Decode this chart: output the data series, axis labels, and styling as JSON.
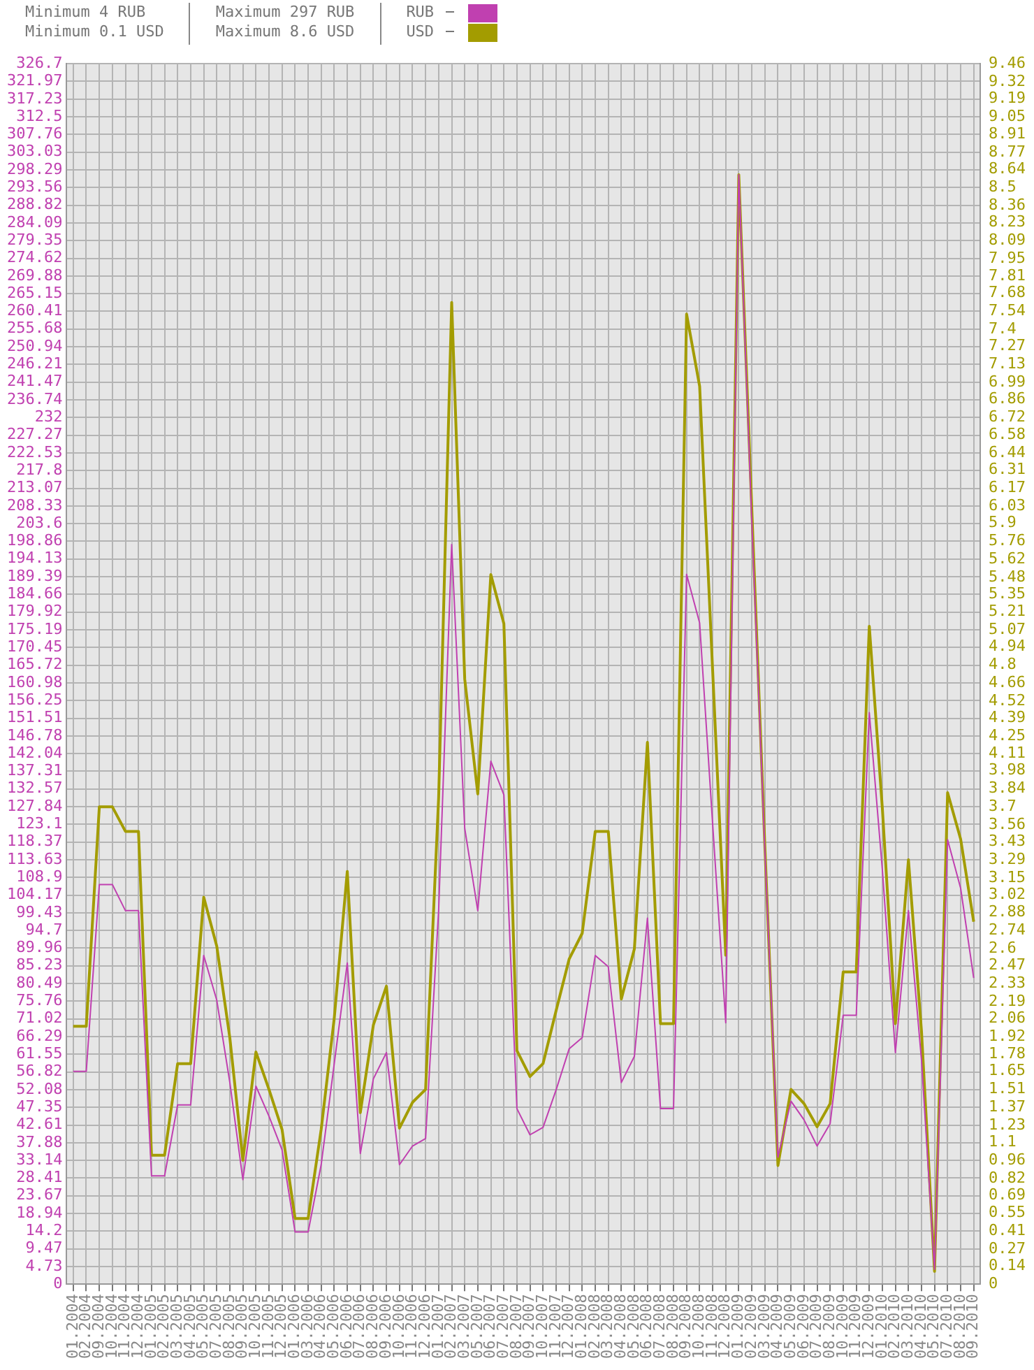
{
  "chart_data": {
    "type": "line",
    "categories": [
      "01.2004",
      "02.2004",
      "09.2004",
      "10.2004",
      "11.2004",
      "12.2004",
      "01.2005",
      "02.2005",
      "03.2005",
      "04.2005",
      "05.2005",
      "07.2005",
      "08.2005",
      "09.2005",
      "10.2005",
      "11.2005",
      "12.2005",
      "01.2006",
      "03.2006",
      "04.2006",
      "05.2006",
      "06.2006",
      "07.2006",
      "08.2006",
      "09.2006",
      "10.2006",
      "11.2006",
      "12.2006",
      "01.2007",
      "02.2007",
      "03.2007",
      "05.2007",
      "06.2007",
      "07.2007",
      "08.2007",
      "09.2007",
      "10.2007",
      "11.2007",
      "12.2007",
      "01.2008",
      "02.2008",
      "03.2008",
      "04.2008",
      "05.2008",
      "06.2008",
      "07.2008",
      "08.2008",
      "09.2008",
      "10.2008",
      "11.2008",
      "12.2008",
      "01.2009",
      "02.2009",
      "03.2009",
      "04.2009",
      "05.2009",
      "06.2009",
      "07.2009",
      "08.2009",
      "10.2009",
      "11.2009",
      "12.2009",
      "01.2010",
      "02.2010",
      "03.2010",
      "04.2010",
      "05.2010",
      "07.2010",
      "08.2010",
      "09.2010"
    ],
    "series": [
      {
        "name": "RUB",
        "color": "#c040b0",
        "values": [
          57,
          57,
          107,
          107,
          100,
          100,
          29,
          29,
          48,
          48,
          88,
          76,
          54,
          28,
          53,
          45,
          36,
          14,
          14,
          32,
          59,
          86,
          35,
          55,
          62,
          32,
          37,
          39,
          100,
          198,
          122,
          100,
          140,
          131,
          47,
          40,
          42,
          52,
          63,
          66,
          88,
          85,
          54,
          61,
          98,
          47,
          47,
          190,
          177,
          123,
          70,
          297,
          204,
          116,
          34,
          49,
          44,
          37,
          43,
          72,
          72,
          153,
          111,
          62,
          100,
          60,
          4,
          119,
          106,
          82
        ]
      },
      {
        "name": "USD",
        "color": "#a39c00",
        "axis": "y2",
        "values": [
          2.0,
          2.0,
          3.7,
          3.7,
          3.51,
          3.51,
          1.0,
          1.0,
          1.71,
          1.71,
          3.0,
          2.62,
          1.91,
          0.96,
          1.8,
          1.51,
          1.2,
          0.51,
          0.51,
          1.2,
          2.06,
          3.2,
          1.33,
          2.01,
          2.31,
          1.21,
          1.41,
          1.51,
          3.77,
          7.61,
          4.69,
          3.8,
          5.5,
          5.12,
          1.81,
          1.61,
          1.71,
          2.12,
          2.52,
          2.72,
          3.51,
          3.51,
          2.21,
          2.6,
          4.2,
          2.02,
          2.02,
          7.52,
          6.96,
          4.75,
          2.55,
          8.6,
          6.0,
          3.39,
          0.92,
          1.51,
          1.4,
          1.22,
          1.4,
          2.42,
          2.42,
          5.1,
          3.69,
          2.02,
          3.29,
          1.96,
          0.1,
          3.81,
          3.45,
          2.81
        ]
      }
    ],
    "ylim": [
      0,
      326.7
    ],
    "yticks": [
      0,
      4.73,
      9.47,
      14.2,
      18.94,
      23.67,
      28.41,
      33.14,
      37.88,
      42.61,
      47.35,
      52.08,
      56.82,
      61.55,
      66.29,
      71.02,
      75.76,
      80.49,
      85.23,
      89.96,
      94.7,
      99.43,
      104.17,
      108.9,
      113.63,
      118.37,
      123.1,
      127.84,
      132.57,
      137.31,
      142.04,
      146.78,
      151.51,
      156.25,
      160.98,
      165.72,
      170.45,
      175.19,
      179.92,
      184.66,
      189.39,
      194.13,
      198.86,
      203.6,
      208.33,
      213.07,
      217.8,
      222.53,
      227.27,
      232,
      236.74,
      241.47,
      246.21,
      250.94,
      255.68,
      260.41,
      265.15,
      269.88,
      274.62,
      279.35,
      284.09,
      288.82,
      293.56,
      298.29,
      303.03,
      307.76,
      312.5,
      317.23,
      321.97,
      326.7
    ],
    "y2lim": [
      0,
      9.46
    ],
    "y2ticks": [
      0,
      0.14,
      0.27,
      0.41,
      0.55,
      0.69,
      0.82,
      0.96,
      1.1,
      1.23,
      1.37,
      1.51,
      1.65,
      1.78,
      1.92,
      2.06,
      2.19,
      2.33,
      2.47,
      2.6,
      2.74,
      2.88,
      3.02,
      3.15,
      3.29,
      3.43,
      3.56,
      3.7,
      3.84,
      3.98,
      4.11,
      4.25,
      4.39,
      4.52,
      4.66,
      4.8,
      4.94,
      5.07,
      5.21,
      5.35,
      5.48,
      5.62,
      5.76,
      5.9,
      6.03,
      6.17,
      6.31,
      6.44,
      6.58,
      6.72,
      6.86,
      6.99,
      7.13,
      7.27,
      7.4,
      7.54,
      7.68,
      7.81,
      7.95,
      8.09,
      8.23,
      8.36,
      8.5,
      8.64,
      8.77,
      8.91,
      9.05,
      9.19,
      9.32,
      9.46
    ],
    "grid": true,
    "legend": "top left",
    "marker": "none",
    "annotations": [
      "Minimum 4 RUB",
      "Minimum 0.1 USD",
      "Maximum 297 RUB",
      "Maximum 8.6 USD"
    ]
  }
}
